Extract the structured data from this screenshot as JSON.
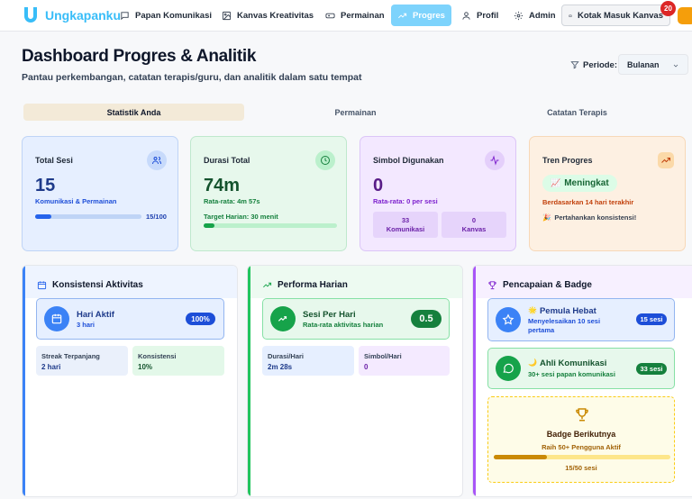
{
  "nav": {
    "brand": "Ungkapanku",
    "items": [
      {
        "label": "Papan Komunikasi",
        "icon": "chat-bubble-icon"
      },
      {
        "label": "Kanvas Kreativitas",
        "icon": "image-icon"
      },
      {
        "label": "Permainan",
        "icon": "gamepad-icon"
      },
      {
        "label": "Progres",
        "icon": "trending-up-icon",
        "active": true
      },
      {
        "label": "Profil",
        "icon": "user-icon"
      },
      {
        "label": "Admin",
        "icon": "gear-icon"
      },
      {
        "label": "Kotak Masuk Kanvas",
        "icon": "inbox-icon"
      }
    ],
    "inbox_badge": "20"
  },
  "header": {
    "title": "Dashboard Progres & Analitik",
    "subtitle": "Pantau perkembangan, catatan terapis/guru, dan analitik dalam satu tempat",
    "period_label": "Periode:",
    "period_value": "Bulanan"
  },
  "tabs": [
    "Statistik Anda",
    "Permainan",
    "Catatan Terapis"
  ],
  "stats": {
    "total": {
      "title": "Total Sesi",
      "value": "15",
      "sub": "Komunikasi & Permainan",
      "progress": 0.15,
      "count": "15/100"
    },
    "duration": {
      "title": "Durasi Total",
      "value": "74m",
      "sub": "Rata-rata: 4m 57s",
      "target": "Target Harian: 30 menit",
      "progress": 0.08
    },
    "symbols": {
      "title": "Simbol Digunakan",
      "value": "0",
      "sub": "Rata-rata: 0 per sesi",
      "chip1_value": "33",
      "chip1_label": "Komunikasi",
      "chip2_value": "0",
      "chip2_label": "Kanvas"
    },
    "trend": {
      "title": "Tren Progres",
      "value": "Meningkat",
      "sub": "Berdasarkan 14 hari terakhir",
      "note": "Pertahankan konsistensi!"
    }
  },
  "consistency": {
    "title": "Konsistensi Aktivitas",
    "hero_title": "Hari Aktif",
    "hero_sub": "3 hari",
    "hero_pill": "100%",
    "streak_label": "Streak Terpanjang",
    "streak_value": "2 hari",
    "cons_label": "Konsistensi",
    "cons_value": "10%"
  },
  "daily": {
    "title": "Performa Harian",
    "hero_title": "Sesi Per Hari",
    "hero_sub": "Rata-rata aktivitas harian",
    "hero_pill": "0.5",
    "dur_label": "Durasi/Hari",
    "dur_value": "2m 28s",
    "sym_label": "Simbol/Hari",
    "sym_value": "0"
  },
  "badges": {
    "title": "Pencapaian & Badge",
    "b1_title": "Pemula Hebat",
    "b1_desc": "Menyelesaikan 10 sesi pertama",
    "b1_pill": "15 sesi",
    "b2_title": "Ahli Komunikasi",
    "b2_desc": "30+ sesi papan komunikasi",
    "b2_pill": "33 sesi",
    "next_title": "Badge Berikutnya",
    "next_desc": "Raih 50+ Pengguna Aktif",
    "next_progress": 0.3,
    "next_count": "15/50 sesi"
  },
  "colors": {
    "accent": "#7dd3fc",
    "blue": "#2563eb",
    "green": "#16a34a",
    "purple": "#a855f7",
    "orange": "#f59e0b"
  }
}
